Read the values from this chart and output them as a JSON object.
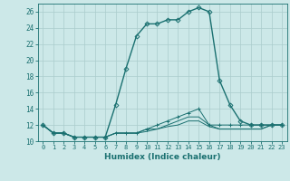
{
  "xlabel": "Humidex (Indice chaleur)",
  "ylabel": "",
  "bg_color": "#cce8e8",
  "line_color": "#1a7070",
  "grid_color": "#aacccc",
  "xlim": [
    -0.5,
    23.5
  ],
  "ylim": [
    10,
    27
  ],
  "xticks": [
    0,
    1,
    2,
    3,
    4,
    5,
    6,
    7,
    8,
    9,
    10,
    11,
    12,
    13,
    14,
    15,
    16,
    17,
    18,
    19,
    20,
    21,
    22,
    23
  ],
  "yticks": [
    10,
    12,
    14,
    16,
    18,
    20,
    22,
    24,
    26
  ],
  "series": [
    {
      "x": [
        0,
        1,
        2,
        3,
        4,
        5,
        6,
        7,
        8,
        9,
        10,
        11,
        12,
        13,
        14,
        15,
        16,
        17,
        18,
        19,
        20,
        21,
        22,
        23
      ],
      "y": [
        12,
        11,
        11,
        10.5,
        10.5,
        10.5,
        10.5,
        14.5,
        19,
        23,
        24.5,
        24.5,
        25,
        25,
        26,
        26.5,
        26,
        17.5,
        14.5,
        12.5,
        12,
        12,
        12,
        12
      ],
      "marker": "D",
      "markersize": 2.5,
      "linewidth": 1.0
    },
    {
      "x": [
        0,
        1,
        2,
        3,
        4,
        5,
        6,
        7,
        8,
        9,
        10,
        11,
        12,
        13,
        14,
        15,
        16,
        17,
        18,
        19,
        20,
        21,
        22,
        23
      ],
      "y": [
        12,
        11,
        11,
        10.5,
        10.5,
        10.5,
        10.5,
        11,
        11,
        11,
        11.5,
        12,
        12.5,
        13,
        13.5,
        14,
        12,
        12,
        12,
        12,
        12,
        12,
        12,
        12
      ],
      "marker": "+",
      "markersize": 3.5,
      "linewidth": 0.7
    },
    {
      "x": [
        0,
        1,
        2,
        3,
        4,
        5,
        6,
        7,
        8,
        9,
        10,
        11,
        12,
        13,
        14,
        15,
        16,
        17,
        18,
        19,
        20,
        21,
        22,
        23
      ],
      "y": [
        12,
        11,
        11,
        10.5,
        10.5,
        10.5,
        10.5,
        11,
        11,
        11,
        11.5,
        11.5,
        12,
        12.5,
        13,
        13,
        12,
        11.5,
        11.5,
        11.5,
        11.5,
        11.5,
        12,
        12
      ],
      "marker": null,
      "markersize": 0,
      "linewidth": 0.7
    },
    {
      "x": [
        0,
        1,
        2,
        3,
        4,
        5,
        6,
        7,
        8,
        9,
        10,
        11,
        12,
        13,
        14,
        15,
        16,
        17,
        18,
        19,
        20,
        21,
        22,
        23
      ],
      "y": [
        12,
        11,
        11,
        10.5,
        10.5,
        10.5,
        10.5,
        11,
        11,
        11,
        11.2,
        11.5,
        11.8,
        12,
        12.5,
        12.5,
        11.8,
        11.5,
        11.5,
        11.5,
        11.5,
        11.5,
        12,
        12
      ],
      "marker": null,
      "markersize": 0,
      "linewidth": 0.7
    }
  ]
}
